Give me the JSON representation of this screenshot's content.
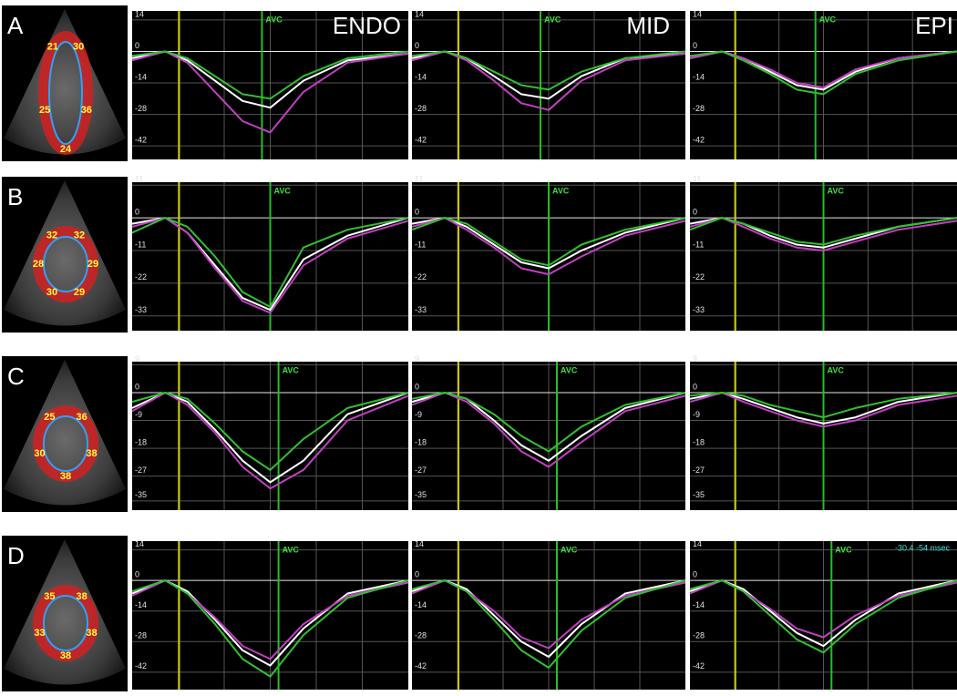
{
  "figure": {
    "row_labels": [
      "A",
      "B",
      "C",
      "D"
    ],
    "column_labels": [
      "ENDO",
      "MID",
      "EPI"
    ],
    "thumbnail_labels": [
      [
        "30",
        "36",
        "24",
        "25",
        "21"
      ],
      [
        "32",
        "29",
        "29",
        "30",
        "28",
        "32"
      ],
      [
        "36",
        "38",
        "38",
        "30",
        "25"
      ],
      [
        "38",
        "38",
        "38",
        "33",
        "35"
      ]
    ]
  },
  "chart_data": [
    {
      "type": "line",
      "x": [
        0,
        12,
        20,
        30,
        40,
        50,
        62,
        78,
        100
      ],
      "xlim": [
        0,
        100
      ],
      "ylim": [
        -48,
        18
      ],
      "yticks": [
        14,
        0,
        -14,
        -28,
        -42
      ],
      "grid": true,
      "vlines": [
        {
          "x": 17,
          "color": "#c8c800"
        },
        {
          "x": 47,
          "color": "#22c022",
          "label": "AVC"
        }
      ],
      "series": [
        {
          "color": "#ffffff",
          "values": [
            -3,
            0,
            -4,
            -13,
            -22,
            -25,
            -13,
            -4,
            -1
          ]
        },
        {
          "color": "#c040c0",
          "values": [
            -4,
            0,
            -5,
            -18,
            -31,
            -36,
            -18,
            -5,
            -1
          ]
        },
        {
          "color": "#30c030",
          "values": [
            -2,
            0,
            -3,
            -11,
            -19,
            -21,
            -11,
            -3,
            0
          ]
        }
      ]
    },
    {
      "type": "line",
      "x": [
        0,
        12,
        20,
        30,
        40,
        50,
        62,
        78,
        100
      ],
      "xlim": [
        0,
        100
      ],
      "ylim": [
        -48,
        18
      ],
      "yticks": [
        14,
        0,
        -14,
        -28,
        -42
      ],
      "grid": true,
      "vlines": [
        {
          "x": 17,
          "color": "#c8c800"
        },
        {
          "x": 47,
          "color": "#22c022",
          "label": "AVC"
        }
      ],
      "series": [
        {
          "color": "#ffffff",
          "values": [
            -3,
            0,
            -3,
            -11,
            -19,
            -21,
            -11,
            -3,
            -1
          ]
        },
        {
          "color": "#c040c0",
          "values": [
            -4,
            0,
            -4,
            -13,
            -23,
            -26,
            -13,
            -4,
            -1
          ]
        },
        {
          "color": "#30c030",
          "values": [
            -2,
            0,
            -3,
            -9,
            -15,
            -17,
            -9,
            -3,
            0
          ]
        }
      ]
    },
    {
      "type": "line",
      "x": [
        0,
        12,
        20,
        30,
        40,
        50,
        62,
        78,
        100
      ],
      "xlim": [
        0,
        100
      ],
      "ylim": [
        -48,
        18
      ],
      "yticks": [
        14,
        0,
        -14,
        -28,
        -42
      ],
      "grid": true,
      "vlines": [
        {
          "x": 17,
          "color": "#c8c800"
        },
        {
          "x": 47,
          "color": "#22c022",
          "label": "AVC"
        }
      ],
      "series": [
        {
          "color": "#ffffff",
          "values": [
            -3,
            0,
            -3,
            -9,
            -15,
            -17,
            -9,
            -3,
            0
          ]
        },
        {
          "color": "#c040c0",
          "values": [
            -3,
            0,
            -3,
            -8,
            -14,
            -16,
            -8,
            -3,
            0
          ]
        },
        {
          "color": "#30c030",
          "values": [
            -2,
            0,
            -4,
            -10,
            -17,
            -19,
            -10,
            -4,
            0
          ]
        }
      ]
    },
    {
      "type": "line",
      "x": [
        0,
        12,
        20,
        30,
        40,
        50,
        62,
        78,
        100
      ],
      "xlim": [
        0,
        100
      ],
      "ylim": [
        -38,
        12
      ],
      "yticks": [
        11,
        0,
        -11,
        -22,
        -33
      ],
      "grid": true,
      "vlines": [
        {
          "x": 17,
          "color": "#c8c800"
        },
        {
          "x": 50,
          "color": "#22c022",
          "label": "AVC"
        }
      ],
      "series": [
        {
          "color": "#ffffff",
          "values": [
            -2,
            0,
            -5,
            -16,
            -27,
            -31,
            -14,
            -6,
            0
          ]
        },
        {
          "color": "#c040c0",
          "values": [
            -3,
            0,
            -5,
            -17,
            -28,
            -32,
            -16,
            -7,
            -1
          ]
        },
        {
          "color": "#30c030",
          "values": [
            -5,
            0,
            -3,
            -13,
            -25,
            -30,
            -10,
            -4,
            0
          ]
        }
      ]
    },
    {
      "type": "line",
      "x": [
        0,
        12,
        20,
        30,
        40,
        50,
        62,
        78,
        100
      ],
      "xlim": [
        0,
        100
      ],
      "ylim": [
        -38,
        12
      ],
      "yticks": [
        11,
        0,
        -11,
        -22,
        -33
      ],
      "grid": true,
      "vlines": [
        {
          "x": 17,
          "color": "#c8c800"
        },
        {
          "x": 50,
          "color": "#22c022",
          "label": "AVC"
        }
      ],
      "series": [
        {
          "color": "#ffffff",
          "values": [
            -2,
            0,
            -3,
            -9,
            -15,
            -17,
            -11,
            -5,
            0
          ]
        },
        {
          "color": "#c040c0",
          "values": [
            -3,
            0,
            -4,
            -10,
            -17,
            -19,
            -13,
            -6,
            -1
          ]
        },
        {
          "color": "#30c030",
          "values": [
            -4,
            0,
            -2,
            -8,
            -14,
            -16,
            -9,
            -4,
            0
          ]
        }
      ]
    },
    {
      "type": "line",
      "x": [
        0,
        12,
        20,
        30,
        40,
        50,
        62,
        78,
        100
      ],
      "xlim": [
        0,
        100
      ],
      "ylim": [
        -38,
        12
      ],
      "yticks": [
        11,
        0,
        -11,
        -22,
        -33
      ],
      "grid": true,
      "vlines": [
        {
          "x": 17,
          "color": "#c8c800"
        },
        {
          "x": 50,
          "color": "#22c022",
          "label": "AVC"
        }
      ],
      "series": [
        {
          "color": "#ffffff",
          "values": [
            -2,
            0,
            -2,
            -6,
            -9,
            -10,
            -7,
            -3,
            0
          ]
        },
        {
          "color": "#c040c0",
          "values": [
            -3,
            0,
            -3,
            -7,
            -10,
            -11,
            -8,
            -4,
            -1
          ]
        },
        {
          "color": "#30c030",
          "values": [
            -4,
            0,
            -2,
            -5,
            -8,
            -9,
            -6,
            -3,
            0
          ]
        }
      ]
    },
    {
      "type": "line",
      "x": [
        0,
        12,
        20,
        30,
        40,
        50,
        62,
        78,
        100
      ],
      "xlim": [
        0,
        100
      ],
      "ylim": [
        -38,
        10
      ],
      "yticks": [
        9,
        0,
        -9,
        -18,
        -27,
        -35
      ],
      "grid": true,
      "vlines": [
        {
          "x": 17,
          "color": "#c8c800"
        },
        {
          "x": 53,
          "color": "#22c022",
          "label": "AVC"
        }
      ],
      "series": [
        {
          "color": "#ffffff",
          "values": [
            -5,
            0,
            -3,
            -12,
            -22,
            -29,
            -22,
            -7,
            0
          ]
        },
        {
          "color": "#c040c0",
          "values": [
            -6,
            0,
            -4,
            -13,
            -24,
            -31,
            -25,
            -9,
            -1
          ]
        },
        {
          "color": "#30c030",
          "values": [
            -3,
            0,
            -2,
            -10,
            -19,
            -25,
            -15,
            -5,
            0
          ]
        }
      ]
    },
    {
      "type": "line",
      "x": [
        0,
        12,
        20,
        30,
        40,
        50,
        62,
        78,
        100
      ],
      "xlim": [
        0,
        100
      ],
      "ylim": [
        -38,
        10
      ],
      "yticks": [
        9,
        0,
        -9,
        -18,
        -27,
        -35
      ],
      "grid": true,
      "vlines": [
        {
          "x": 17,
          "color": "#c8c800"
        },
        {
          "x": 53,
          "color": "#22c022",
          "label": "AVC"
        }
      ],
      "series": [
        {
          "color": "#ffffff",
          "values": [
            -3,
            0,
            -2,
            -9,
            -17,
            -22,
            -14,
            -5,
            0
          ]
        },
        {
          "color": "#c040c0",
          "values": [
            -4,
            0,
            -3,
            -10,
            -19,
            -24,
            -16,
            -6,
            -1
          ]
        },
        {
          "color": "#30c030",
          "values": [
            -2,
            0,
            -2,
            -7,
            -14,
            -19,
            -11,
            -4,
            0
          ]
        }
      ]
    },
    {
      "type": "line",
      "x": [
        0,
        12,
        20,
        30,
        40,
        50,
        62,
        78,
        100
      ],
      "xlim": [
        0,
        100
      ],
      "ylim": [
        -38,
        10
      ],
      "yticks": [
        9,
        0,
        -9,
        -18,
        -27,
        -35
      ],
      "grid": true,
      "vlines": [
        {
          "x": 17,
          "color": "#c8c800"
        },
        {
          "x": 50,
          "color": "#22c022",
          "label": "AVC"
        }
      ],
      "series": [
        {
          "color": "#ffffff",
          "values": [
            -2,
            0,
            -2,
            -5,
            -8,
            -10,
            -8,
            -3,
            0
          ]
        },
        {
          "color": "#c040c0",
          "values": [
            -3,
            0,
            -3,
            -6,
            -9,
            -11,
            -9,
            -4,
            -1
          ]
        },
        {
          "color": "#30c030",
          "values": [
            -1,
            0,
            -1,
            -4,
            -6,
            -8,
            -5,
            -2,
            0
          ]
        }
      ]
    },
    {
      "type": "line",
      "x": [
        0,
        12,
        20,
        30,
        40,
        50,
        62,
        78,
        100
      ],
      "xlim": [
        0,
        100
      ],
      "ylim": [
        -50,
        18
      ],
      "yticks": [
        14,
        0,
        -14,
        -28,
        -42
      ],
      "grid": true,
      "vlines": [
        {
          "x": 17,
          "color": "#c8c800"
        },
        {
          "x": 53,
          "color": "#22c022",
          "label": "AVC"
        }
      ],
      "series": [
        {
          "color": "#ffffff",
          "values": [
            -6,
            0,
            -5,
            -18,
            -32,
            -39,
            -22,
            -6,
            0
          ]
        },
        {
          "color": "#c040c0",
          "values": [
            -7,
            0,
            -6,
            -17,
            -30,
            -36,
            -20,
            -7,
            -1
          ]
        },
        {
          "color": "#30c030",
          "values": [
            -5,
            0,
            -6,
            -20,
            -36,
            -44,
            -25,
            -8,
            0
          ]
        }
      ]
    },
    {
      "type": "line",
      "x": [
        0,
        12,
        20,
        30,
        40,
        50,
        62,
        78,
        100
      ],
      "xlim": [
        0,
        100
      ],
      "ylim": [
        -50,
        18
      ],
      "yticks": [
        14,
        0,
        -14,
        -28,
        -42
      ],
      "grid": true,
      "vlines": [
        {
          "x": 17,
          "color": "#c8c800"
        },
        {
          "x": 53,
          "color": "#22c022",
          "label": "AVC"
        }
      ],
      "series": [
        {
          "color": "#ffffff",
          "values": [
            -5,
            0,
            -4,
            -16,
            -28,
            -35,
            -20,
            -6,
            0
          ]
        },
        {
          "color": "#c040c0",
          "values": [
            -6,
            0,
            -5,
            -14,
            -26,
            -31,
            -18,
            -7,
            -1
          ]
        },
        {
          "color": "#30c030",
          "values": [
            -4,
            0,
            -5,
            -18,
            -32,
            -40,
            -23,
            -8,
            0
          ]
        }
      ]
    },
    {
      "type": "line",
      "x": [
        0,
        12,
        20,
        30,
        40,
        50,
        62,
        78,
        100
      ],
      "xlim": [
        0,
        100
      ],
      "ylim": [
        -50,
        18
      ],
      "yticks": [
        14,
        0,
        -14,
        -28,
        -42
      ],
      "grid": true,
      "vlines": [
        {
          "x": 17,
          "color": "#c8c800"
        },
        {
          "x": 53,
          "color": "#22c022",
          "label": "AVC"
        }
      ],
      "annotation": "-30.4  -54 msec",
      "series": [
        {
          "color": "#ffffff",
          "values": [
            -5,
            0,
            -4,
            -14,
            -24,
            -30,
            -18,
            -6,
            0
          ]
        },
        {
          "color": "#c040c0",
          "values": [
            -6,
            0,
            -5,
            -13,
            -22,
            -26,
            -16,
            -7,
            -1
          ]
        },
        {
          "color": "#30c030",
          "values": [
            -4,
            0,
            -5,
            -16,
            -27,
            -33,
            -20,
            -8,
            0
          ]
        }
      ]
    }
  ]
}
